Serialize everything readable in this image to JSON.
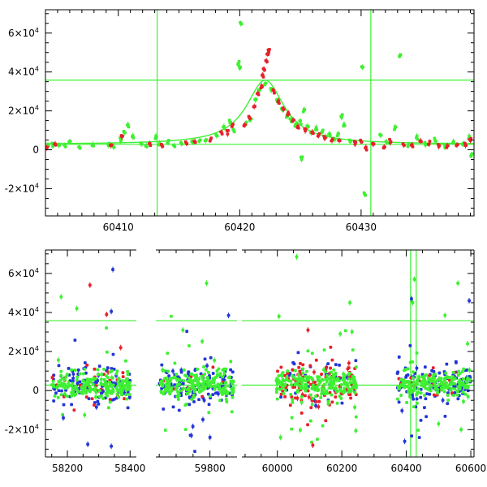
{
  "chart_data": [
    {
      "type": "scatter",
      "title": "",
      "xlabel": "",
      "ylabel": "",
      "xlim": [
        60404,
        60439.3
      ],
      "ylim": [
        -34000,
        72000
      ],
      "xticks": [
        60410,
        60420,
        60430
      ],
      "xtick_labels": [
        "60410",
        "60420",
        "60430"
      ],
      "yticks": [
        -20000,
        0,
        20000,
        40000,
        60000
      ],
      "ytick_labels": [
        {
          "mant": "-2×10",
          "exp": "4"
        },
        {
          "mant": "0",
          "exp": ""
        },
        {
          "mant": "2×10",
          "exp": "4"
        },
        {
          "mant": "4×10",
          "exp": "4"
        },
        {
          "mant": "6×10",
          "exp": "4"
        }
      ],
      "hlines": [
        2800,
        35800
      ],
      "vlines": [
        60413.2,
        60430.8
      ],
      "model": {
        "type": "lorentzian",
        "t0": 60422.1,
        "peak": 33000,
        "width": 1.9,
        "baseline": 2800
      },
      "colors": {
        "red": "#e8202a",
        "green": "#3ef032",
        "blue": "#2335d8",
        "model": "#3ef032"
      },
      "series": [
        {
          "color": "green",
          "points": [
            [
              60404.2,
              1800
            ],
            [
              60404.6,
              2600
            ],
            [
              60405.1,
              3100
            ],
            [
              60405.6,
              1500
            ],
            [
              60406.0,
              4200
            ],
            [
              60406.8,
              900
            ],
            [
              60407.9,
              2200
            ],
            [
              60409.2,
              2900
            ],
            [
              60409.6,
              1800
            ],
            [
              60410.2,
              5200
            ],
            [
              60410.5,
              9500
            ],
            [
              60410.8,
              12500
            ],
            [
              60411.2,
              6500
            ],
            [
              60411.9,
              3200
            ],
            [
              60412.3,
              1900
            ],
            [
              60413.1,
              6400
            ],
            [
              60413.4,
              2700
            ],
            [
              60414.1,
              4100
            ],
            [
              60414.6,
              2200
            ],
            [
              60415.2,
              3800
            ],
            [
              60416.1,
              3900
            ],
            [
              60416.7,
              4300
            ],
            [
              60417.2,
              4900
            ],
            [
              60418.1,
              7200
            ],
            [
              60418.7,
              11200
            ],
            [
              60419.2,
              14500
            ],
            [
              60419.5,
              9800
            ],
            [
              60419.9,
              44800
            ],
            [
              60420.0,
              42500
            ],
            [
              60420.1,
              65000
            ],
            [
              60420.5,
              13500
            ],
            [
              60420.9,
              15500
            ],
            [
              60421.3,
              26000
            ],
            [
              60421.6,
              31000
            ],
            [
              60422.1,
              33500
            ],
            [
              60422.6,
              31000
            ],
            [
              60423.1,
              25500
            ],
            [
              60423.5,
              20500
            ],
            [
              60423.9,
              17500
            ],
            [
              60424.2,
              15000
            ],
            [
              60424.6,
              12500
            ],
            [
              60425.0,
              14000
            ],
            [
              60425.1,
              -4500
            ],
            [
              60425.3,
              20000
            ],
            [
              60425.6,
              12000
            ],
            [
              60425.9,
              9500
            ],
            [
              60426.3,
              11000
            ],
            [
              60426.8,
              9200
            ],
            [
              60427.1,
              6800
            ],
            [
              60427.4,
              8200
            ],
            [
              60427.8,
              5600
            ],
            [
              60428.1,
              7800
            ],
            [
              60428.4,
              17300
            ],
            [
              60428.6,
              13000
            ],
            [
              60429.1,
              4400
            ],
            [
              60430.1,
              42800
            ],
            [
              60430.3,
              -22500
            ],
            [
              60431.6,
              7300
            ],
            [
              60432.1,
              3900
            ],
            [
              60432.8,
              11000
            ],
            [
              60433.2,
              48800
            ],
            [
              60433.9,
              2500
            ],
            [
              60434.6,
              6300
            ],
            [
              60435.3,
              2900
            ],
            [
              60436.1,
              5100
            ],
            [
              60436.9,
              1900
            ],
            [
              60437.6,
              4200
            ],
            [
              60438.4,
              2500
            ],
            [
              60438.9,
              6300
            ],
            [
              60439.1,
              -2500
            ]
          ]
        },
        {
          "color": "red",
          "points": [
            [
              60404.1,
              1200
            ],
            [
              60404.8,
              2200
            ],
            [
              60409.4,
              3000
            ],
            [
              60410.3,
              6500
            ],
            [
              60412.6,
              2800
            ],
            [
              60413.6,
              2500
            ],
            [
              60415.6,
              3300
            ],
            [
              60416.3,
              3700
            ],
            [
              60417.6,
              5400
            ],
            [
              60418.5,
              8500
            ],
            [
              60419.0,
              9000
            ],
            [
              60419.4,
              12500
            ],
            [
              60420.4,
              12500
            ],
            [
              60420.8,
              16500
            ],
            [
              60421.2,
              22500
            ],
            [
              60421.5,
              28500
            ],
            [
              60421.8,
              32500
            ],
            [
              60421.9,
              38000
            ],
            [
              60422.0,
              41000
            ],
            [
              60422.2,
              46000
            ],
            [
              60422.3,
              49500
            ],
            [
              60422.4,
              51000
            ],
            [
              60422.8,
              30000
            ],
            [
              60423.2,
              24500
            ],
            [
              60423.6,
              21000
            ],
            [
              60424.0,
              18500
            ],
            [
              60424.4,
              15500
            ],
            [
              60424.8,
              11500
            ],
            [
              60425.4,
              10500
            ],
            [
              60426.0,
              9000
            ],
            [
              60426.5,
              7500
            ],
            [
              60427.0,
              6200
            ],
            [
              60427.6,
              5200
            ],
            [
              60428.2,
              4200
            ],
            [
              60429.5,
              3500
            ],
            [
              60430.0,
              4500
            ],
            [
              60430.4,
              500
            ],
            [
              60431.0,
              3200
            ],
            [
              60431.9,
              1800
            ],
            [
              60432.4,
              4500
            ],
            [
              60433.5,
              2500
            ],
            [
              60434.2,
              2100
            ],
            [
              60434.9,
              4200
            ],
            [
              60435.6,
              3600
            ],
            [
              60436.4,
              2300
            ],
            [
              60437.1,
              1500
            ],
            [
              60437.9,
              3000
            ],
            [
              60438.6,
              2600
            ],
            [
              60439.0,
              5600
            ]
          ]
        }
      ]
    },
    {
      "type": "scatter",
      "title": "",
      "xlabel": "",
      "ylabel": "",
      "broken_axis": true,
      "segments": [
        {
          "xlim": [
            58130,
            58420
          ],
          "xticks": [
            58200,
            58400
          ],
          "xtick_labels": [
            "58200",
            "58400"
          ]
        },
        {
          "xlim": [
            59640,
            59880
          ],
          "xticks": [
            59800
          ],
          "xtick_labels": [
            "59800"
          ]
        },
        {
          "xlim": [
            59890,
            60610
          ],
          "xticks": [
            60000,
            60200,
            60400,
            60600
          ],
          "xtick_labels": [
            "60000",
            "60200",
            "60400",
            "60600"
          ]
        }
      ],
      "ylim": [
        -34000,
        72000
      ],
      "yticks": [
        -20000,
        0,
        20000,
        40000,
        60000
      ],
      "ytick_labels": [
        {
          "mant": "-2×10",
          "exp": "4"
        },
        {
          "mant": "0",
          "exp": ""
        },
        {
          "mant": "2×10",
          "exp": "4"
        },
        {
          "mant": "4×10",
          "exp": "4"
        },
        {
          "mant": "6×10",
          "exp": "4"
        }
      ],
      "hlines": [
        2800,
        35800
      ],
      "vlines": [
        60413.2,
        60430.8
      ],
      "colors": {
        "red": "#e8202a",
        "green": "#3ef032",
        "blue": "#2335d8"
      },
      "clusters": [
        {
          "x_range": [
            58150,
            58400
          ],
          "n": 340,
          "mix": {
            "green": 0.6,
            "blue": 0.3,
            "red": 0.1
          },
          "spread": 6500
        },
        {
          "x_range": [
            59650,
            59870
          ],
          "n": 340,
          "mix": {
            "green": 0.6,
            "blue": 0.35,
            "red": 0.05
          },
          "spread": 7000
        },
        {
          "x_range": [
            59995,
            60245
          ],
          "n": 380,
          "mix": {
            "green": 0.6,
            "blue": 0.1,
            "red": 0.3
          },
          "spread": 7000
        },
        {
          "x_range": [
            60372,
            60600
          ],
          "n": 320,
          "mix": {
            "green": 0.6,
            "blue": 0.35,
            "red": 0.05
          },
          "spread": 6000
        }
      ],
      "outliers": [
        {
          "color": "red",
          "x": 58272,
          "y": 54000
        },
        {
          "color": "red",
          "x": 58325,
          "y": 39000
        },
        {
          "color": "blue",
          "x": 58340,
          "y": 40500
        },
        {
          "color": "blue",
          "x": 58345,
          "y": 62000
        },
        {
          "color": "green",
          "x": 58180,
          "y": 48000
        },
        {
          "color": "green",
          "x": 58230,
          "y": 42000
        },
        {
          "color": "blue",
          "x": 58187,
          "y": -14000
        },
        {
          "color": "blue",
          "x": 58265,
          "y": -27500
        },
        {
          "color": "blue",
          "x": 58340,
          "y": -28500
        },
        {
          "color": "red",
          "x": 58370,
          "y": 22000
        },
        {
          "color": "green",
          "x": 58255,
          "y": -12500
        },
        {
          "color": "green",
          "x": 59790,
          "y": 55000
        },
        {
          "color": "blue",
          "x": 59745,
          "y": -23000
        },
        {
          "color": "blue",
          "x": 59800,
          "y": -24000
        },
        {
          "color": "blue",
          "x": 59855,
          "y": 38500
        },
        {
          "color": "green",
          "x": 59720,
          "y": 31000
        },
        {
          "color": "green",
          "x": 60005,
          "y": 38000
        },
        {
          "color": "green",
          "x": 60060,
          "y": 68500
        },
        {
          "color": "red",
          "x": 60095,
          "y": 31000
        },
        {
          "color": "green",
          "x": 60195,
          "y": 29000
        },
        {
          "color": "green",
          "x": 60010,
          "y": -24000
        },
        {
          "color": "red",
          "x": 60110,
          "y": -28000
        },
        {
          "color": "green",
          "x": 60225,
          "y": 45000
        },
        {
          "color": "green",
          "x": 60420,
          "y": 45000
        },
        {
          "color": "green",
          "x": 60425,
          "y": 57000
        },
        {
          "color": "blue",
          "x": 60416,
          "y": 47000
        },
        {
          "color": "green",
          "x": 60520,
          "y": 38500
        },
        {
          "color": "green",
          "x": 60560,
          "y": 55000
        },
        {
          "color": "blue",
          "x": 60595,
          "y": 46000
        },
        {
          "color": "green",
          "x": 60590,
          "y": 24000
        },
        {
          "color": "blue",
          "x": 60395,
          "y": -26000
        },
        {
          "color": "green",
          "x": 60570,
          "y": -20000
        },
        {
          "color": "green",
          "x": 60500,
          "y": -17000
        }
      ]
    }
  ]
}
